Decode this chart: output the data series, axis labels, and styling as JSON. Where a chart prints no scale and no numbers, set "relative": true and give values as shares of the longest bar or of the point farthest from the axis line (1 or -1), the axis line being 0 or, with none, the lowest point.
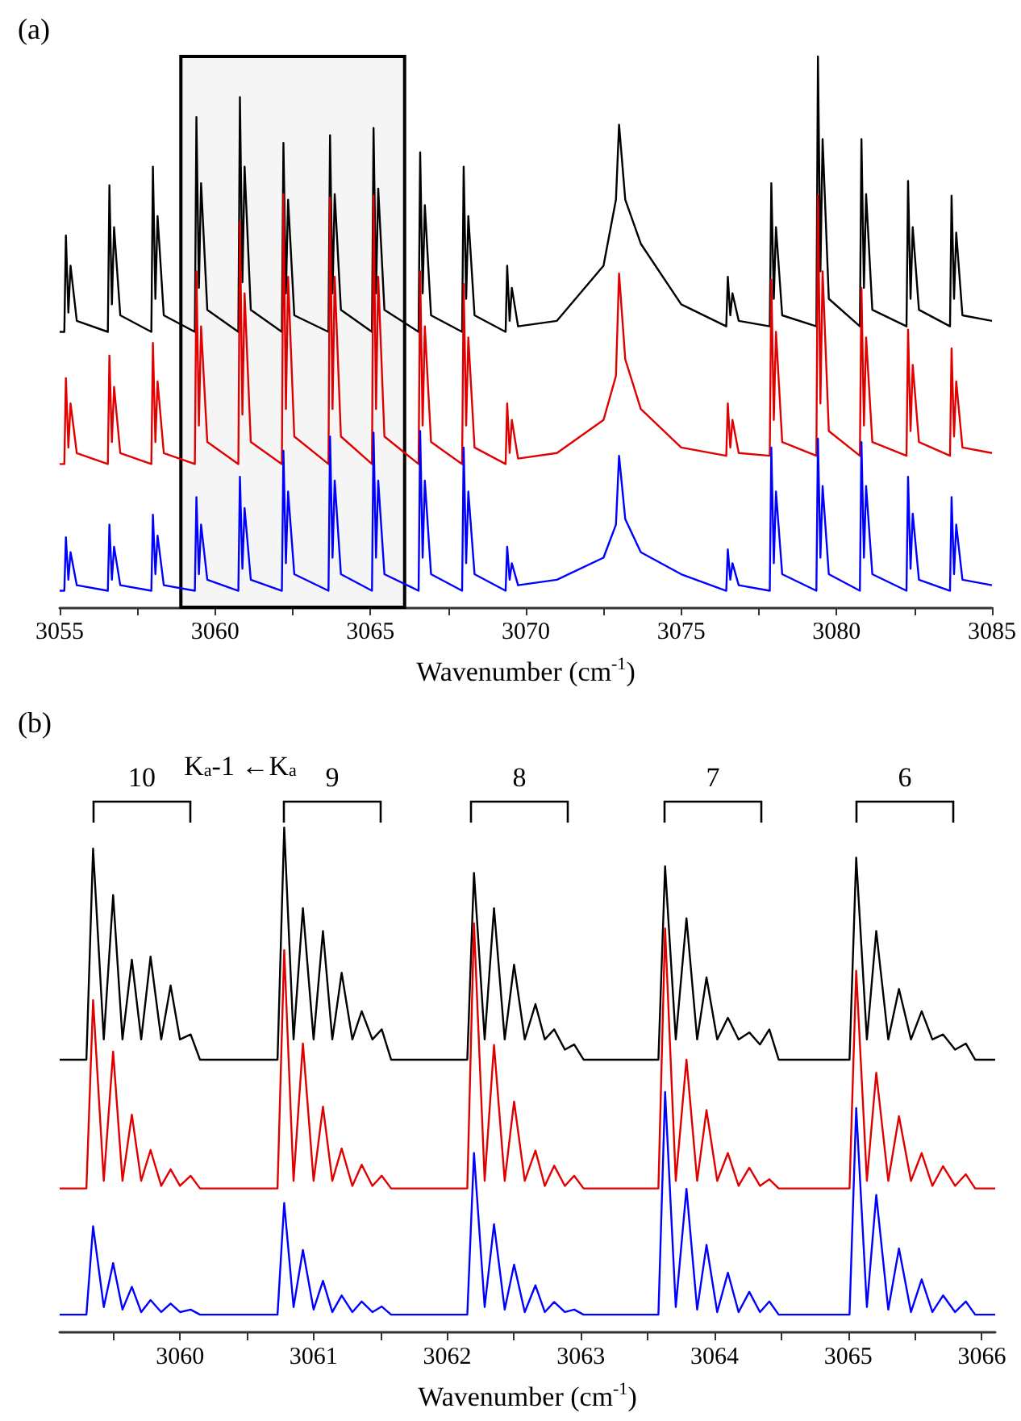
{
  "chart_data": [
    {
      "type": "line",
      "title": "(a)",
      "xlabel": "Wavenumber (cm$^{-1}$)",
      "relative": true,
      "xlim": [
        3055,
        3085
      ],
      "xticks": [
        3055,
        {
          "value": 3057.5,
          "label": null
        },
        3060,
        {
          "value": 3062.5,
          "label": null
        },
        3065,
        {
          "value": 3067.5,
          "label": null
        },
        3070,
        {
          "value": 3072.5,
          "label": null
        },
        3075,
        {
          "value": 3077.5,
          "label": null
        },
        3080,
        {
          "value": 3082.5,
          "label": null
        },
        3085
      ],
      "bands": [
        {
          "axis": "x",
          "from": 3058.9,
          "to": 3066.1,
          "color": "#000000"
        }
      ],
      "x": [
        3055.0,
        3055.15,
        3055.2,
        3055.28,
        3055.35,
        3055.55,
        3056.55,
        3056.6,
        3056.68,
        3056.75,
        3056.95,
        3057.95,
        3058.0,
        3058.08,
        3058.15,
        3058.35,
        3059.35,
        3059.4,
        3059.48,
        3059.55,
        3059.75,
        3060.75,
        3060.8,
        3060.88,
        3060.95,
        3061.15,
        3062.15,
        3062.2,
        3062.28,
        3062.35,
        3062.55,
        3063.65,
        3063.7,
        3063.78,
        3063.85,
        3064.05,
        3065.05,
        3065.1,
        3065.18,
        3065.25,
        3065.45,
        3066.55,
        3066.6,
        3066.68,
        3066.75,
        3066.95,
        3067.95,
        3068.0,
        3068.08,
        3068.15,
        3068.35,
        3069.35,
        3069.4,
        3069.48,
        3069.55,
        3069.75,
        3071.0,
        3072.5,
        3072.9,
        3073.0,
        3073.2,
        3073.7,
        3075.0,
        3076.45,
        3076.5,
        3076.58,
        3076.65,
        3076.85,
        3077.85,
        3077.9,
        3077.98,
        3078.05,
        3078.25,
        3079.35,
        3079.4,
        3079.48,
        3079.55,
        3079.75,
        3080.75,
        3080.8,
        3080.88,
        3080.95,
        3081.15,
        3082.25,
        3082.3,
        3082.38,
        3082.45,
        3082.65,
        3083.65,
        3083.7,
        3083.78,
        3083.85,
        3084.05,
        3085.0
      ],
      "series": [
        {
          "color": "#000000",
          "values": [
            0.5,
            0.5,
            0.675,
            0.535,
            0.62,
            0.52,
            0.5,
            0.766,
            0.55,
            0.69,
            0.53,
            0.5,
            0.8,
            0.56,
            0.71,
            0.53,
            0.5,
            0.89,
            0.58,
            0.77,
            0.54,
            0.5,
            0.926,
            0.59,
            0.8,
            0.54,
            0.5,
            0.843,
            0.57,
            0.74,
            0.53,
            0.5,
            0.857,
            0.57,
            0.75,
            0.54,
            0.5,
            0.87,
            0.57,
            0.76,
            0.54,
            0.5,
            0.826,
            0.57,
            0.73,
            0.53,
            0.5,
            0.8,
            0.56,
            0.71,
            0.53,
            0.5,
            0.62,
            0.52,
            0.58,
            0.51,
            0.52,
            0.62,
            0.74,
            0.876,
            0.74,
            0.66,
            0.55,
            0.51,
            0.6,
            0.53,
            0.57,
            0.52,
            0.51,
            0.77,
            0.56,
            0.69,
            0.53,
            0.51,
            1.0,
            0.61,
            0.85,
            0.56,
            0.51,
            0.85,
            0.58,
            0.75,
            0.54,
            0.51,
            0.774,
            0.56,
            0.69,
            0.54,
            0.51,
            0.747,
            0.56,
            0.68,
            0.53,
            0.52
          ]
        },
        {
          "color": "#e00000",
          "values": [
            0.26,
            0.26,
            0.416,
            0.29,
            0.37,
            0.28,
            0.26,
            0.457,
            0.3,
            0.4,
            0.28,
            0.26,
            0.48,
            0.3,
            0.41,
            0.28,
            0.26,
            0.61,
            0.33,
            0.51,
            0.3,
            0.26,
            0.7,
            0.35,
            0.57,
            0.3,
            0.26,
            0.75,
            0.36,
            0.6,
            0.31,
            0.26,
            0.744,
            0.36,
            0.6,
            0.31,
            0.26,
            0.747,
            0.36,
            0.6,
            0.31,
            0.26,
            0.61,
            0.33,
            0.51,
            0.3,
            0.26,
            0.587,
            0.33,
            0.49,
            0.29,
            0.26,
            0.37,
            0.28,
            0.34,
            0.27,
            0.28,
            0.34,
            0.42,
            0.606,
            0.45,
            0.36,
            0.29,
            0.275,
            0.37,
            0.29,
            0.34,
            0.28,
            0.275,
            0.595,
            0.34,
            0.5,
            0.3,
            0.275,
            0.747,
            0.37,
            0.61,
            0.32,
            0.275,
            0.58,
            0.33,
            0.49,
            0.3,
            0.275,
            0.504,
            0.32,
            0.44,
            0.3,
            0.275,
            0.47,
            0.31,
            0.41,
            0.29,
            0.28
          ]
        },
        {
          "color": "#0000ff",
          "values": [
            0.03,
            0.03,
            0.127,
            0.05,
            0.1,
            0.04,
            0.03,
            0.15,
            0.05,
            0.11,
            0.04,
            0.03,
            0.168,
            0.06,
            0.13,
            0.04,
            0.03,
            0.2,
            0.06,
            0.15,
            0.05,
            0.03,
            0.237,
            0.07,
            0.18,
            0.05,
            0.03,
            0.284,
            0.08,
            0.21,
            0.06,
            0.03,
            0.31,
            0.09,
            0.23,
            0.06,
            0.03,
            0.317,
            0.09,
            0.23,
            0.06,
            0.03,
            0.32,
            0.09,
            0.23,
            0.06,
            0.03,
            0.29,
            0.08,
            0.21,
            0.06,
            0.03,
            0.11,
            0.05,
            0.08,
            0.04,
            0.05,
            0.09,
            0.15,
            0.275,
            0.16,
            0.1,
            0.06,
            0.03,
            0.105,
            0.05,
            0.08,
            0.04,
            0.03,
            0.29,
            0.08,
            0.21,
            0.06,
            0.03,
            0.306,
            0.09,
            0.22,
            0.06,
            0.03,
            0.3,
            0.09,
            0.22,
            0.06,
            0.03,
            0.237,
            0.07,
            0.17,
            0.05,
            0.03,
            0.2,
            0.06,
            0.15,
            0.05,
            0.04
          ]
        }
      ]
    },
    {
      "type": "line",
      "title": "(b)",
      "xlabel": "Wavenumber (cm$^{-1}$)",
      "relative": true,
      "xlim": [
        3059.1,
        3066.1
      ],
      "xticks": [
        {
          "value": 3059.5,
          "label": null
        },
        3060,
        {
          "value": 3060.5,
          "label": null
        },
        3061,
        {
          "value": 3061.5,
          "label": null
        },
        3062,
        {
          "value": 3062.5,
          "label": null
        },
        3063,
        {
          "value": 3063.5,
          "label": null
        },
        3064,
        {
          "value": 3064.5,
          "label": null
        },
        3065,
        {
          "value": 3065.5,
          "label": null
        },
        3066
      ],
      "annotations": [
        "10",
        "K$_{a}$-1 ←K$_{a}$",
        "9",
        "8",
        "7",
        "6"
      ],
      "x": [
        3059.1,
        3059.3,
        3059.35,
        3059.43,
        3059.5,
        3059.57,
        3059.64,
        3059.71,
        3059.78,
        3059.86,
        3059.93,
        3060.0,
        3060.08,
        3060.15,
        3060.73,
        3060.78,
        3060.85,
        3060.92,
        3061.0,
        3061.07,
        3061.14,
        3061.21,
        3061.29,
        3061.36,
        3061.44,
        3061.51,
        3061.58,
        3062.15,
        3062.2,
        3062.28,
        3062.35,
        3062.43,
        3062.5,
        3062.58,
        3062.66,
        3062.73,
        3062.8,
        3062.88,
        3062.95,
        3063.02,
        3063.58,
        3063.63,
        3063.71,
        3063.79,
        3063.87,
        3063.94,
        3064.02,
        3064.1,
        3064.18,
        3064.26,
        3064.34,
        3064.41,
        3064.48,
        3065.01,
        3065.06,
        3065.14,
        3065.21,
        3065.3,
        3065.38,
        3065.47,
        3065.55,
        3065.63,
        3065.71,
        3065.8,
        3065.88,
        3065.95,
        3066.1
      ],
      "series": [
        {
          "color": "#000000",
          "values": [
            0.54,
            0.54,
            0.958,
            0.58,
            0.866,
            0.58,
            0.738,
            0.58,
            0.744,
            0.58,
            0.687,
            0.58,
            0.59,
            0.54,
            0.54,
            1.0,
            0.58,
            0.84,
            0.58,
            0.795,
            0.58,
            0.712,
            0.58,
            0.636,
            0.58,
            0.6,
            0.54,
            0.54,
            0.91,
            0.58,
            0.84,
            0.58,
            0.728,
            0.58,
            0.65,
            0.58,
            0.6,
            0.56,
            0.57,
            0.54,
            0.54,
            0.923,
            0.58,
            0.82,
            0.58,
            0.703,
            0.58,
            0.623,
            0.58,
            0.594,
            0.57,
            0.6,
            0.54,
            0.54,
            0.94,
            0.58,
            0.795,
            0.58,
            0.68,
            0.58,
            0.636,
            0.58,
            0.59,
            0.56,
            0.572,
            0.54,
            0.54
          ]
        },
        {
          "color": "#e00000",
          "values": [
            0.285,
            0.285,
            0.658,
            0.3,
            0.556,
            0.3,
            0.431,
            0.3,
            0.361,
            0.29,
            0.323,
            0.29,
            0.31,
            0.285,
            0.285,
            0.757,
            0.3,
            0.572,
            0.3,
            0.447,
            0.3,
            0.364,
            0.29,
            0.332,
            0.29,
            0.31,
            0.285,
            0.285,
            0.81,
            0.3,
            0.569,
            0.3,
            0.457,
            0.3,
            0.36,
            0.29,
            0.33,
            0.29,
            0.31,
            0.285,
            0.285,
            0.8,
            0.3,
            0.54,
            0.3,
            0.44,
            0.3,
            0.355,
            0.29,
            0.326,
            0.29,
            0.303,
            0.285,
            0.285,
            0.716,
            0.3,
            0.514,
            0.3,
            0.428,
            0.3,
            0.355,
            0.29,
            0.329,
            0.29,
            0.313,
            0.285,
            0.285
          ]
        },
        {
          "color": "#0000ff",
          "values": [
            0.035,
            0.035,
            0.21,
            0.05,
            0.137,
            0.045,
            0.09,
            0.04,
            0.064,
            0.04,
            0.057,
            0.04,
            0.045,
            0.035,
            0.035,
            0.256,
            0.05,
            0.163,
            0.045,
            0.102,
            0.04,
            0.073,
            0.04,
            0.061,
            0.04,
            0.051,
            0.035,
            0.035,
            0.355,
            0.05,
            0.214,
            0.045,
            0.134,
            0.04,
            0.093,
            0.04,
            0.06,
            0.04,
            0.045,
            0.035,
            0.035,
            0.476,
            0.05,
            0.284,
            0.045,
            0.173,
            0.04,
            0.118,
            0.04,
            0.08,
            0.04,
            0.061,
            0.035,
            0.035,
            0.444,
            0.05,
            0.272,
            0.045,
            0.166,
            0.04,
            0.105,
            0.04,
            0.073,
            0.04,
            0.061,
            0.035,
            0.035
          ]
        }
      ]
    }
  ]
}
